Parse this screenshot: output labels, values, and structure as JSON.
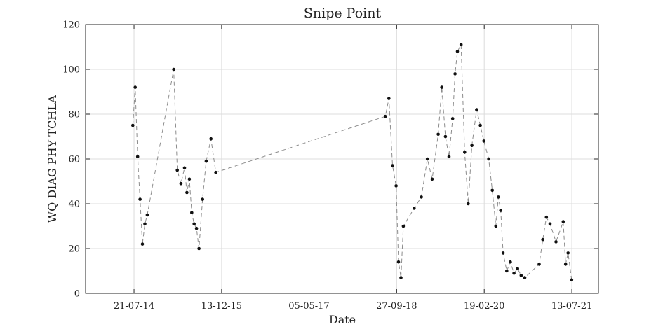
{
  "chart_data": {
    "type": "line",
    "title": "Snipe Point",
    "xlabel": "Date",
    "ylabel": "WQ DIAG PHY TCHLA",
    "ylim": [
      0,
      120
    ],
    "yticks": [
      0,
      20,
      40,
      60,
      80,
      100,
      120
    ],
    "xlim": [
      "2013-10-12",
      "2021-12-15"
    ],
    "xticks": [
      {
        "date": "2014-07-21",
        "label": "21-07-14"
      },
      {
        "date": "2015-12-13",
        "label": "13-12-15"
      },
      {
        "date": "2017-05-05",
        "label": "05-05-17"
      },
      {
        "date": "2018-09-27",
        "label": "27-09-18"
      },
      {
        "date": "2020-02-19",
        "label": "19-02-20"
      },
      {
        "date": "2021-07-13",
        "label": "13-07-21"
      }
    ],
    "grid": true,
    "line_style": "dashed",
    "line_color": "#8c8c8c",
    "marker_color": "#111111",
    "series": [
      {
        "x": [
          "2014-07-14",
          "2014-07-28",
          "2014-08-11",
          "2014-08-25",
          "2014-09-08",
          "2014-09-22",
          "2014-10-06",
          "2015-03-09",
          "2015-03-30",
          "2015-04-20",
          "2015-05-11",
          "2015-05-25",
          "2015-06-08",
          "2015-06-22",
          "2015-07-06",
          "2015-07-20",
          "2015-08-03",
          "2015-08-24",
          "2015-09-14",
          "2015-10-12",
          "2015-11-09",
          "2018-07-23",
          "2018-08-13",
          "2018-09-03",
          "2018-09-24",
          "2018-10-08",
          "2018-10-22",
          "2018-11-05",
          "2019-01-07",
          "2019-02-18",
          "2019-03-25",
          "2019-04-22",
          "2019-05-27",
          "2019-06-17",
          "2019-07-08",
          "2019-07-29",
          "2019-08-19",
          "2019-09-02",
          "2019-09-16",
          "2019-10-07",
          "2019-10-28",
          "2019-11-18",
          "2019-12-09",
          "2020-01-06",
          "2020-01-27",
          "2020-02-17",
          "2020-03-16",
          "2020-04-06",
          "2020-04-27",
          "2020-05-11",
          "2020-05-25",
          "2020-06-08",
          "2020-06-29",
          "2020-07-20",
          "2020-08-10",
          "2020-08-31",
          "2020-09-21",
          "2020-10-12",
          "2021-01-04",
          "2021-01-25",
          "2021-02-15",
          "2021-03-08",
          "2021-04-12",
          "2021-05-24",
          "2021-06-07",
          "2021-06-21"
        ],
        "y": [
          75,
          92,
          61,
          42,
          22,
          31,
          35,
          100,
          55,
          49,
          56,
          45,
          51,
          36,
          31,
          29,
          20,
          42,
          59,
          69,
          54,
          79,
          87,
          57,
          48,
          14,
          7,
          30,
          38,
          43,
          60,
          51,
          71,
          92,
          70,
          61,
          78,
          98,
          108,
          111,
          63,
          40,
          66,
          82,
          75,
          68,
          60,
          46,
          30,
          43,
          37,
          18,
          10,
          14,
          9,
          11,
          8,
          7,
          13,
          24,
          34,
          31,
          23,
          32,
          13,
          18
        ]
      }
    ],
    "last_point": {
      "x": "2021-07-12",
      "y": 6
    }
  }
}
